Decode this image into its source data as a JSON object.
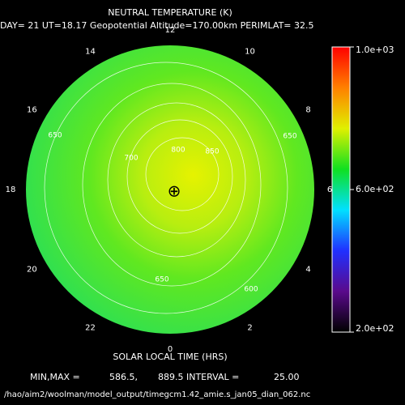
{
  "chart_data": {
    "type": "polar-contour",
    "title": "NEUTRAL TEMPERATURE (K)",
    "subtitle": "DAY= 21 UT=18.17 Geopotential Altitude=170.00km PERIMLAT= 32.5",
    "xlabel": "SOLAR LOCAL TIME (HRS)",
    "angular_ticks": [
      12,
      10,
      8,
      6,
      4,
      2,
      0,
      22,
      20,
      18,
      16,
      14
    ],
    "clim": [
      200,
      1000
    ],
    "cticks": [
      {
        "value": 1000,
        "label": "1.0e+03"
      },
      {
        "value": 600,
        "label": "6.0e+02"
      },
      {
        "value": 200,
        "label": "2.0e+02"
      }
    ],
    "colormap": [
      "#000000",
      "#5a0a8c",
      "#2030ff",
      "#00e0ff",
      "#10e020",
      "#e0f000",
      "#ff8000",
      "#ff0000"
    ],
    "contour_labels": [
      650,
      700,
      800,
      850,
      650,
      600,
      650
    ],
    "stats": {
      "label": "MIN,MAX =",
      "min": {
        "value": 586.5,
        "label": "586.5,"
      },
      "max": {
        "value": 889.5,
        "label": "889.5 INTERVAL ="
      },
      "interval": {
        "value": 25,
        "label": "25.00"
      }
    },
    "footer": "/hao/aim2/woolman/model_output/timegcm1.42_amie.s_jan05_dian_062.nc"
  }
}
